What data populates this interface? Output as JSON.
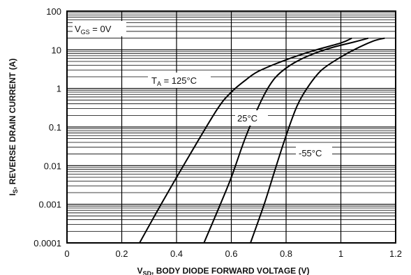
{
  "chart_data": {
    "type": "line",
    "xlabel_main": "V",
    "xlabel_sub": "SD",
    "xlabel_rest": ", BODY DIODE FORWARD VOLTAGE (V)",
    "ylabel_main": "I",
    "ylabel_sub": "S",
    "ylabel_rest": ", REVERSE DRAIN CURRENT (A)",
    "xlim": [
      0,
      1.2
    ],
    "ylim": [
      0.0001,
      100
    ],
    "yscale": "log",
    "x_ticks": [
      "0",
      "0.2",
      "0.4",
      "0.6",
      "0.8",
      "1",
      "1.2"
    ],
    "y_ticks": [
      "0.0001",
      "0.001",
      "0.01",
      "0.1",
      "1",
      "10",
      "100"
    ],
    "grid": true,
    "annotations": {
      "vgs_main": "V",
      "vgs_sub": "GS",
      "vgs_rest": " = 0V",
      "ta_main": "T",
      "ta_sub": "A",
      "ta_rest": " = 125°C",
      "t25": "25°C",
      "tm55": "-55°C"
    },
    "series": [
      {
        "points": [
          [
            0.265,
            0.0001
          ],
          [
            0.35,
            0.0012
          ],
          [
            0.45,
            0.02
          ],
          [
            0.55,
            0.3
          ],
          [
            0.6,
            0.8
          ],
          [
            0.65,
            1.6
          ],
          [
            0.7,
            2.8
          ],
          [
            0.8,
            5.5
          ],
          [
            0.9,
            9.5
          ],
          [
            1.0,
            15
          ],
          [
            1.04,
            20
          ]
        ]
      },
      {
        "points": [
          [
            0.5,
            0.0001
          ],
          [
            0.56,
            0.001
          ],
          [
            0.6,
            0.005
          ],
          [
            0.65,
            0.05
          ],
          [
            0.7,
            0.35
          ],
          [
            0.74,
            1.2
          ],
          [
            0.78,
            2.6
          ],
          [
            0.85,
            5.5
          ],
          [
            0.95,
            10.5
          ],
          [
            1.05,
            16
          ],
          [
            1.1,
            20
          ]
        ]
      },
      {
        "points": [
          [
            0.67,
            0.0001
          ],
          [
            0.72,
            0.001
          ],
          [
            0.76,
            0.008
          ],
          [
            0.8,
            0.06
          ],
          [
            0.84,
            0.35
          ],
          [
            0.88,
            1.1
          ],
          [
            0.93,
            3
          ],
          [
            1.0,
            6.5
          ],
          [
            1.06,
            11
          ],
          [
            1.12,
            17
          ],
          [
            1.16,
            20
          ]
        ]
      }
    ]
  }
}
